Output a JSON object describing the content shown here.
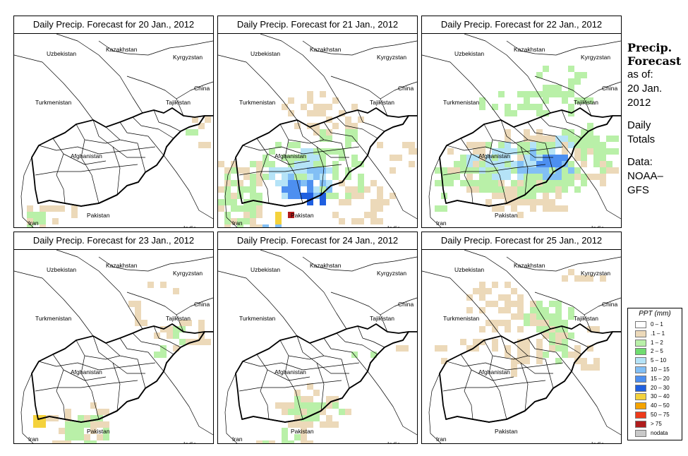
{
  "panels": [
    {
      "title": "Daily Precip. Forecast for  20 Jan., 2012"
    },
    {
      "title": "Daily Precip. Forecast for  21 Jan., 2012"
    },
    {
      "title": "Daily Precip. Forecast for  22 Jan., 2012"
    },
    {
      "title": "Daily Precip. Forecast for  23 Jan., 2012"
    },
    {
      "title": "Daily Precip. Forecast for  24 Jan., 2012"
    },
    {
      "title": "Daily Precip. Forecast for  25 Jan., 2012"
    }
  ],
  "countries": {
    "uzbekistan": "Uzbekistan",
    "kazakhstan": "Kazakhstan",
    "kyrgyzstan": "Kyrgyzstan",
    "china": "China",
    "turkmenistan": "Turkmenistan",
    "tajikistan": "Tajikistan",
    "afghanistan": "Afghanistan",
    "pakistan": "Pakistan",
    "iran": "Iran",
    "india": "India"
  },
  "sidebar": {
    "title_line1": "Precip.",
    "title_line2": "Forecast",
    "asof_line1": "as of:",
    "asof_line2": "20 Jan.",
    "asof_line3": "2012",
    "daily_line1": "Daily",
    "daily_line2": "Totals",
    "data_line1": "Data:",
    "data_line2": "NOAA–",
    "data_line3": "GFS"
  },
  "legend": {
    "title": "PPT (mm)",
    "items": [
      {
        "label": "0 – 1",
        "color": "#ffffff"
      },
      {
        "label": ".1 – 1",
        "color": "#ecd9b9"
      },
      {
        "label": "1 – 2",
        "color": "#b9f0a8"
      },
      {
        "label": "2 – 5",
        "color": "#6fdc6f"
      },
      {
        "label": "5 – 10",
        "color": "#b5e3f7"
      },
      {
        "label": "10 – 15",
        "color": "#82bff5"
      },
      {
        "label": "15 – 20",
        "color": "#4d8ff0"
      },
      {
        "label": "20 – 30",
        "color": "#1f5fe0"
      },
      {
        "label": "30 – 40",
        "color": "#f4d23c"
      },
      {
        "label": "40 – 50",
        "color": "#f5a300"
      },
      {
        "label": "50 – 75",
        "color": "#ee3a1b"
      },
      {
        "label": "> 75",
        "color": "#b01c1c"
      },
      {
        "label": "nodata",
        "color": "#c8c8c8"
      }
    ]
  }
}
